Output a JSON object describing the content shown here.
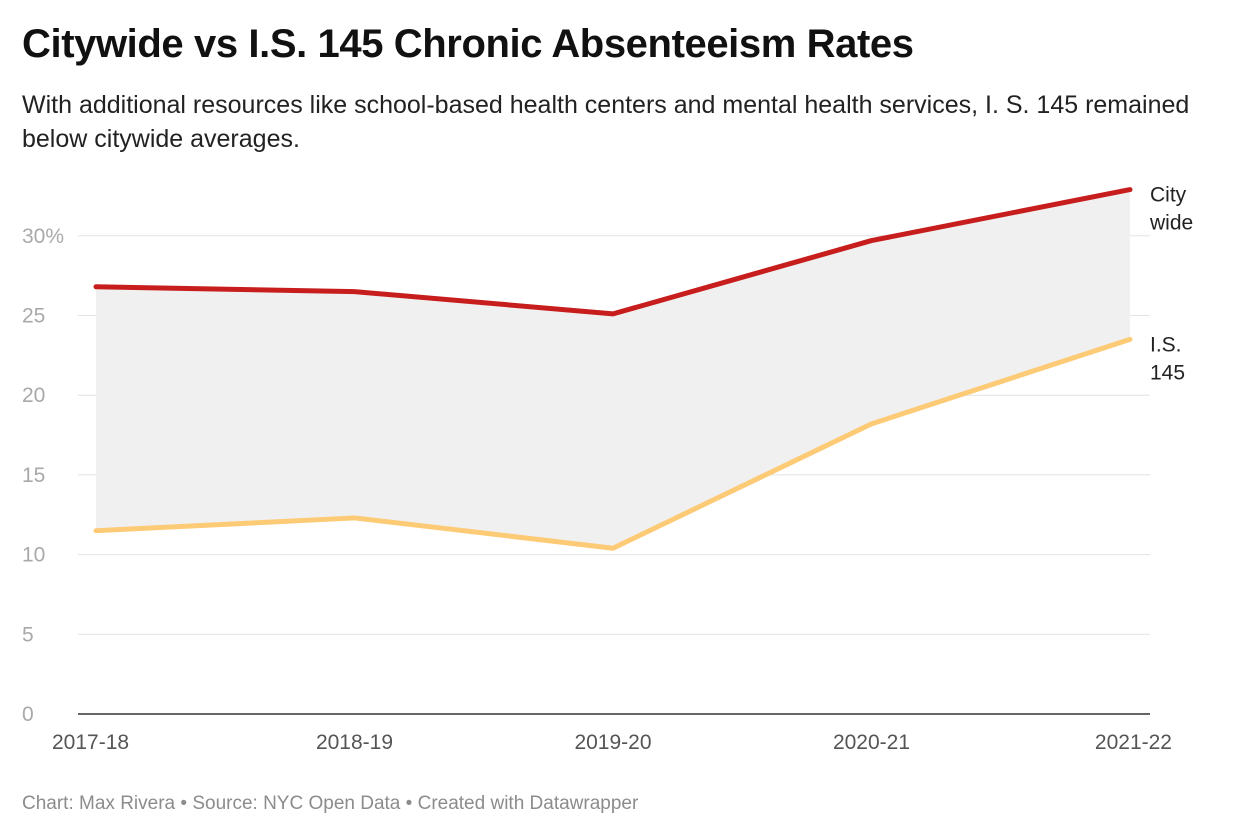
{
  "title": "Citywide vs I.S. 145 Chronic Absenteeism Rates",
  "subtitle": "With additional resources like school-based health centers and mental health services, I. S. 145 remained below citywide averages.",
  "footer": {
    "credit": "Chart: Max Rivera",
    "separator": "•",
    "source": "Source: NYC Open Data",
    "created": "Created with Datawrapper"
  },
  "chart_data": {
    "type": "line",
    "categories": [
      "2017-18",
      "2018-19",
      "2019-20",
      "2020-21",
      "2021-22"
    ],
    "series": [
      {
        "name": "Citywide",
        "label_lines": [
          "City",
          "wide"
        ],
        "values": [
          26.8,
          26.5,
          25.1,
          29.7,
          32.9
        ],
        "color": "#c71e1d"
      },
      {
        "name": "I.S. 145",
        "label_lines": [
          "I.S.",
          "145"
        ],
        "values": [
          11.5,
          12.3,
          10.4,
          18.2,
          23.5
        ],
        "color": "#fdca76"
      }
    ],
    "area_between_series": true,
    "area_color": "#f0f0f0",
    "ylim": [
      0,
      34
    ],
    "yticks": [
      0,
      5,
      10,
      15,
      20,
      25,
      30
    ],
    "ytick_labels": [
      "0",
      "5",
      "10",
      "15",
      "20",
      "25",
      "30%"
    ],
    "xlabel": "",
    "ylabel": "",
    "grid": true,
    "grid_color": "#e2e2e2",
    "axis_color": "#333333",
    "legend": "direct labels at line ends"
  }
}
